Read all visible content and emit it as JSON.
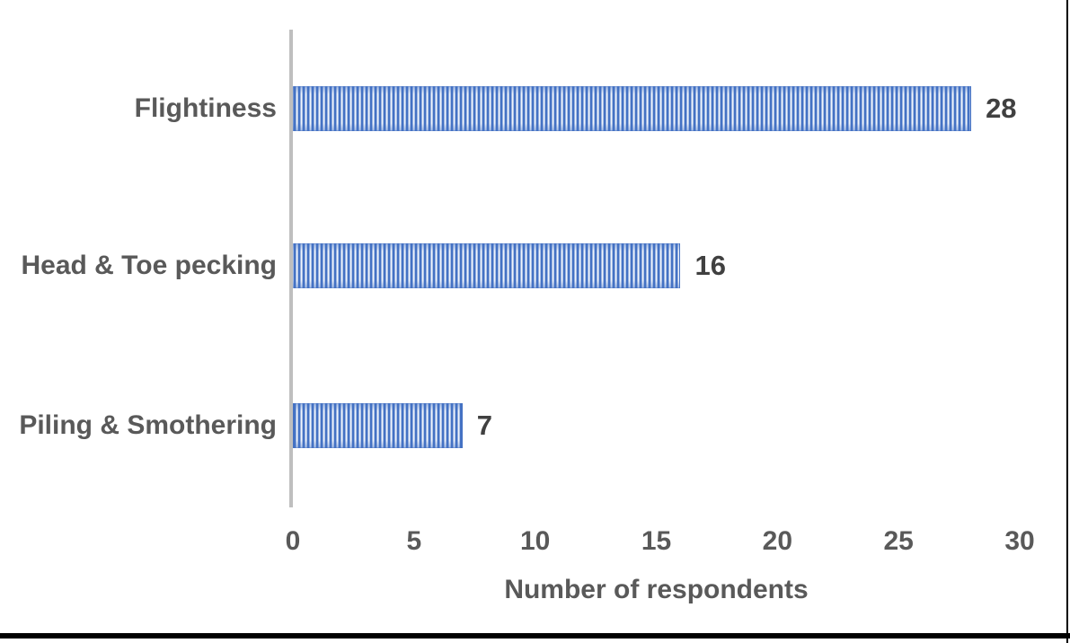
{
  "chart_data": {
    "type": "bar",
    "orientation": "horizontal",
    "title": "",
    "categories": [
      "Flightiness",
      "Head & Toe pecking",
      "Piling & Smothering"
    ],
    "values": [
      28,
      16,
      7
    ],
    "data_labels": [
      "28",
      "16",
      "7"
    ],
    "xlabel": "Number of respondents",
    "ylabel": "",
    "xlim": [
      0,
      30
    ],
    "xticks": [
      0,
      5,
      10,
      15,
      20,
      25,
      30
    ],
    "grid": false,
    "legend": false,
    "bar_fill_pattern": "vertical-stripes",
    "bar_color": "#4472C4",
    "bar_pattern_light_color": "#FDFEFF",
    "category_label_color": "#595959",
    "tick_label_color": "#595959",
    "value_label_color": "#404040",
    "axis_line_color": "#BFBFBF"
  },
  "frame": {
    "border_color": "#000000"
  }
}
